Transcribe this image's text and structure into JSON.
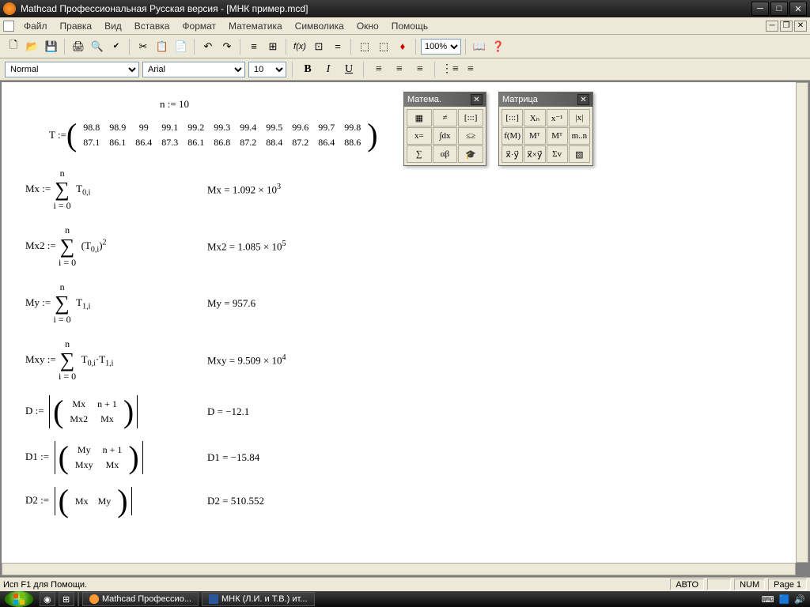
{
  "title": "Mathcad Профессиональная Русская версия - [МНК пример.mcd]",
  "menus": [
    "Файл",
    "Правка",
    "Вид",
    "Вставка",
    "Формат",
    "Математика",
    "Символика",
    "Окно",
    "Помощь"
  ],
  "zoom": "100%",
  "format": {
    "style": "Normal",
    "font": "Arial",
    "size": "10"
  },
  "equations": {
    "n_def": "n := 10",
    "T_label": "T :=",
    "T_row1": [
      "98.8",
      "98.9",
      "99",
      "99.1",
      "99.2",
      "99.3",
      "99.4",
      "99.5",
      "99.6",
      "99.7",
      "99.8"
    ],
    "T_row2": [
      "87.1",
      "86.1",
      "86.4",
      "87.3",
      "86.1",
      "86.8",
      "87.2",
      "88.4",
      "87.2",
      "86.4",
      "88.6"
    ],
    "mx_lhs": "Mx :=",
    "mx_sum_top": "n",
    "mx_sum_bot": "i = 0",
    "mx_body": "T",
    "mx_sub": "0,i",
    "mx_rhs": "Mx = 1.092 × 10",
    "mx_rhs_sup": "3",
    "mx2_lhs": "Mx2 :=",
    "mx2_body": "(T",
    "mx2_sub": "0,i",
    "mx2_sup": "2",
    "mx2_rhs": "Mx2 = 1.085 × 10",
    "mx2_rhs_sup": "5",
    "my_lhs": "My :=",
    "my_body": "T",
    "my_sub": "1,i",
    "my_rhs": "My = 957.6",
    "mxy_lhs": "Mxy :=",
    "mxy_body1": "T",
    "mxy_sub1": "0,i",
    "mxy_body2": "·T",
    "mxy_sub2": "1,i",
    "mxy_rhs": "Mxy = 9.509 × 10",
    "mxy_rhs_sup": "4",
    "d_lhs": "D :=",
    "d_m11": "Mx",
    "d_m12": "n + 1",
    "d_m21": "Mx2",
    "d_m22": "Mx",
    "d_rhs": "D = −12.1",
    "d1_lhs": "D1 :=",
    "d1_m11": "My",
    "d1_m12": "n + 1",
    "d1_m21": "Mxy",
    "d1_m22": "Mx",
    "d1_rhs": "D1 = −15.84",
    "d2_lhs": "D2 :=",
    "d2_m11": "Mx",
    "d2_m12": "My",
    "d2_rhs": "D2 = 510.552"
  },
  "palettes": {
    "math": {
      "title": "Матема.",
      "items": [
        "▦",
        "≠",
        "[:::]",
        "x=",
        "∫dx",
        "≤≥",
        "∑",
        "αβ",
        "🎓"
      ]
    },
    "matrix": {
      "title": "Матрица",
      "items": [
        "[:::]",
        "Xₙ",
        "x⁻¹",
        "|x|",
        "f(M)",
        "Mᵀ",
        "Mᵀ",
        "m..n",
        "x⃗·y⃗",
        "x⃗×y⃗",
        "Σv",
        "▧"
      ]
    }
  },
  "statusbar": {
    "help": "Исп F1 для Помощи.",
    "auto": "АВТО",
    "num": "NUM",
    "page": "Page 1"
  },
  "taskbar": {
    "app1": "Mathcad Профессио...",
    "app2": "МНК (Л.И. и Т.В.) ит..."
  },
  "colors": {
    "bg": "#ece9d8"
  }
}
